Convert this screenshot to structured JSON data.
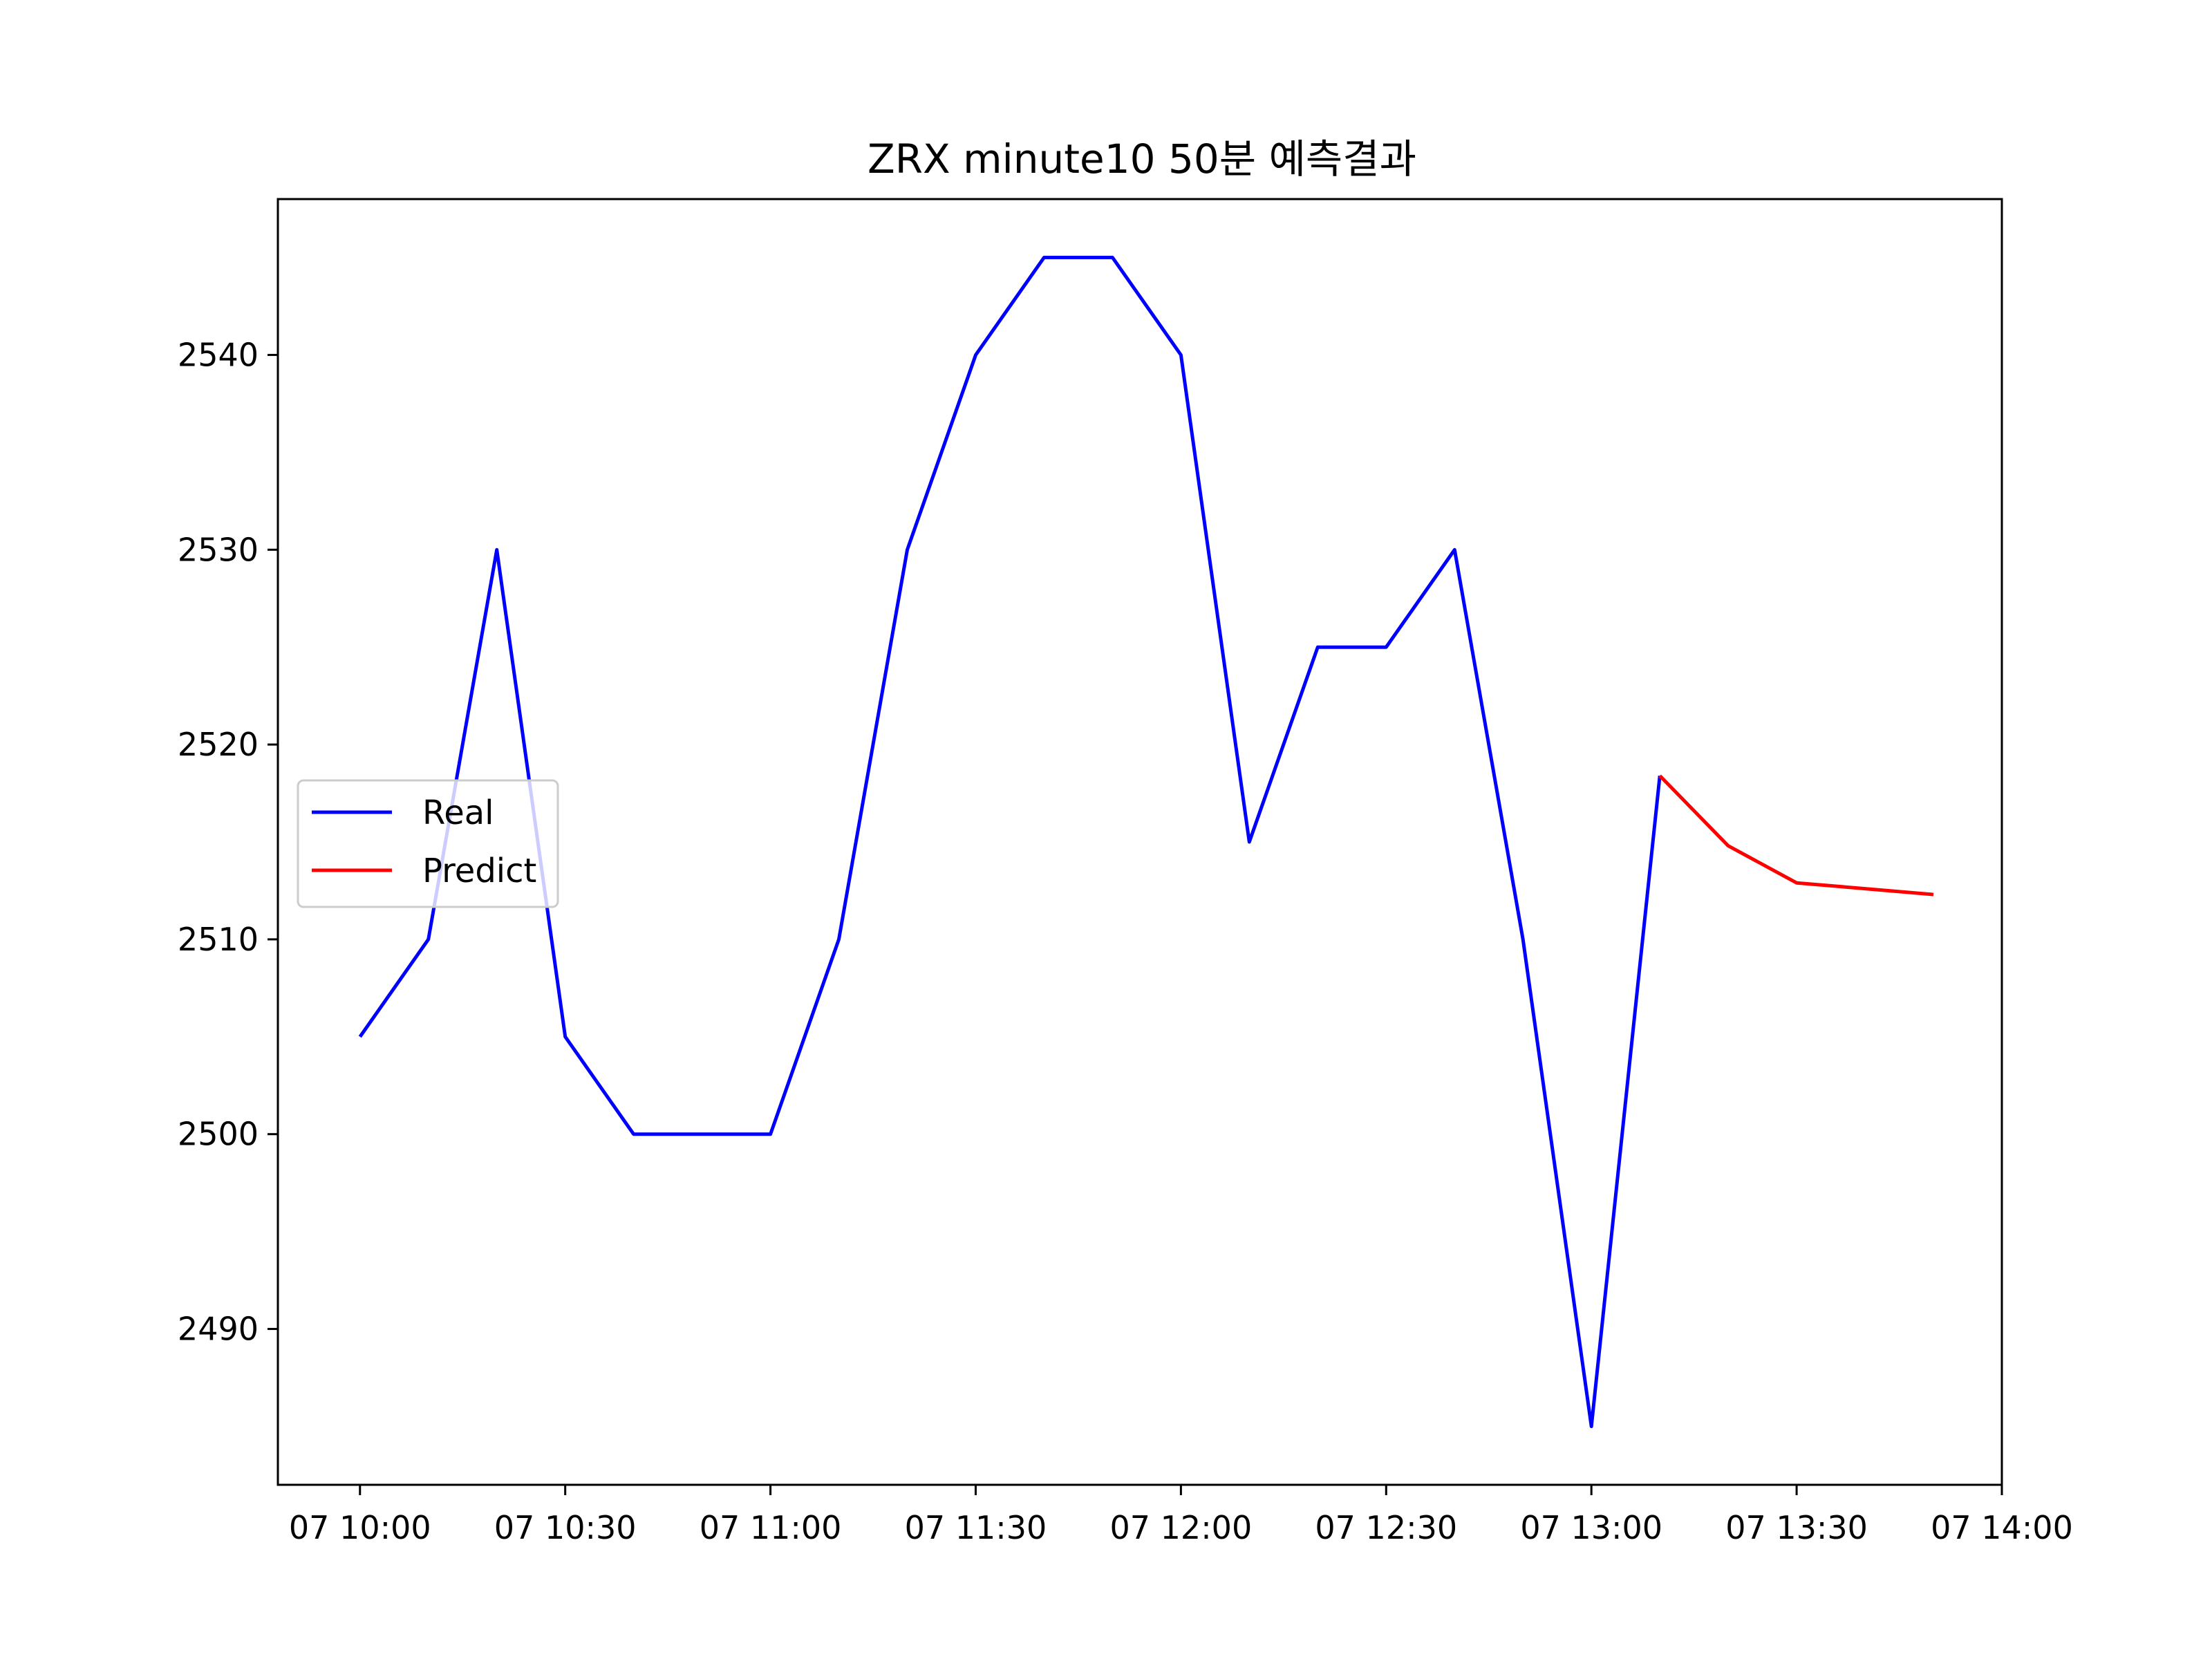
{
  "chart_data": {
    "type": "line",
    "title": "ZRX minute10 50분 예측결과",
    "xlabel": "",
    "ylabel": "",
    "x_ticks": [
      "07 10:00",
      "07 10:30",
      "07 11:00",
      "07 11:30",
      "07 12:00",
      "07 12:30",
      "07 13:00",
      "07 13:30",
      "07 14:00"
    ],
    "y_ticks": [
      "2490",
      "2500",
      "2510",
      "2520",
      "2530",
      "2540"
    ],
    "xlim": [
      "07 09:48",
      "07 14:00"
    ],
    "ylim": [
      2482,
      2548
    ],
    "grid": false,
    "legend_position": "center-left",
    "series": [
      {
        "name": "Real",
        "color": "#0000ff",
        "x": [
          "07 10:00",
          "07 10:10",
          "07 10:20",
          "07 10:30",
          "07 10:40",
          "07 10:50",
          "07 11:00",
          "07 11:10",
          "07 11:20",
          "07 11:30",
          "07 11:40",
          "07 11:50",
          "07 12:00",
          "07 12:10",
          "07 12:20",
          "07 12:30",
          "07 12:40",
          "07 12:50",
          "07 13:00",
          "07 13:10"
        ],
        "values": [
          2505,
          2510,
          2530,
          2505,
          2500,
          2500,
          2500,
          2510,
          2530,
          2540,
          2545,
          2545,
          2540,
          2515,
          2525,
          2525,
          2530,
          2510,
          2485,
          2518.4
        ]
      },
      {
        "name": "Predict",
        "color": "#ff0000",
        "x": [
          "07 13:10",
          "07 13:20",
          "07 13:30",
          "07 13:40",
          "07 13:50"
        ],
        "values": [
          2518.4,
          2514.8,
          2512.9,
          2512.6,
          2512.3
        ]
      }
    ]
  }
}
